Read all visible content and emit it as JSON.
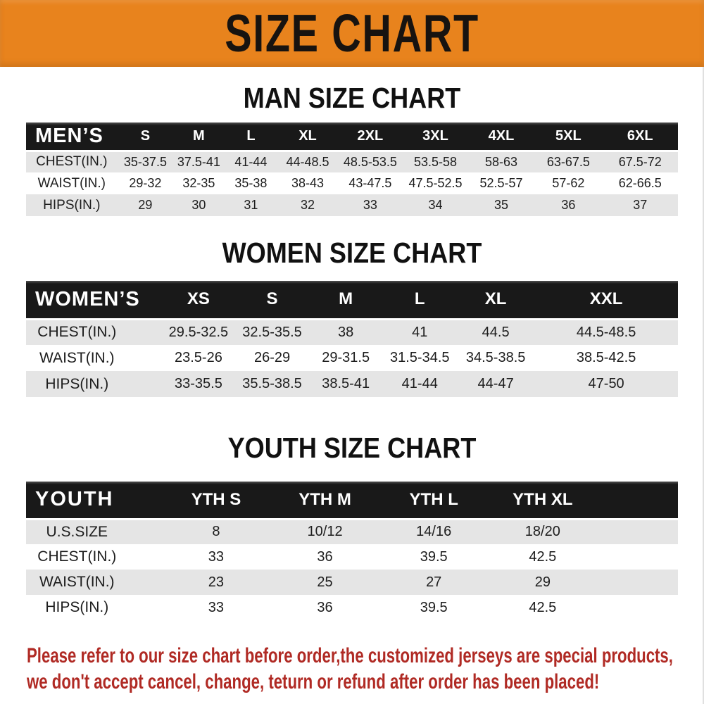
{
  "banner": {
    "title": "SIZE CHART"
  },
  "headings": {
    "men": "MAN SIZE CHART",
    "women": "WOMEN SIZE CHART",
    "youth": "YOUTH SIZE CHART"
  },
  "tables": {
    "men": {
      "header": [
        "MEN’S",
        "S",
        "M",
        "L",
        "XL",
        "2XL",
        "3XL",
        "4XL",
        "5XL",
        "6XL"
      ],
      "rows": [
        [
          "CHEST(IN.)",
          "35-37.5",
          "37.5-41",
          "41-44",
          "44-48.5",
          "48.5-53.5",
          "53.5-58",
          "58-63",
          "63-67.5",
          "67.5-72"
        ],
        [
          "WAIST(IN.)",
          "29-32",
          "32-35",
          "35-38",
          "38-43",
          "43-47.5",
          "47.5-52.5",
          "52.5-57",
          "57-62",
          "62-66.5"
        ],
        [
          "HIPS(IN.)",
          "29",
          "30",
          "31",
          "32",
          "33",
          "34",
          "35",
          "36",
          "37"
        ]
      ]
    },
    "women": {
      "header": [
        "WOMEN’S",
        "XS",
        "S",
        "M",
        "L",
        "XL",
        "XXL"
      ],
      "rows": [
        [
          "CHEST(IN.)",
          "29.5-32.5",
          "32.5-35.5",
          "38",
          "41",
          "44.5",
          "44.5-48.5"
        ],
        [
          "WAIST(IN.)",
          "23.5-26",
          "26-29",
          "29-31.5",
          "31.5-34.5",
          "34.5-38.5",
          "38.5-42.5"
        ],
        [
          "HIPS(IN.)",
          "33-35.5",
          "35.5-38.5",
          "38.5-41",
          "41-44",
          "44-47",
          "47-50"
        ]
      ]
    },
    "youth": {
      "header": [
        "YOUTH",
        "YTH S",
        "YTH M",
        "YTH L",
        "YTH XL",
        ""
      ],
      "rows": [
        [
          "U.S.SIZE",
          "8",
          "10/12",
          "14/16",
          "18/20",
          ""
        ],
        [
          "CHEST(IN.)",
          "33",
          "36",
          "39.5",
          "42.5",
          ""
        ],
        [
          "WAIST(IN.)",
          "23",
          "25",
          "27",
          "29",
          ""
        ],
        [
          "HIPS(IN.)",
          "33",
          "36",
          "39.5",
          "42.5",
          ""
        ]
      ]
    }
  },
  "disclaimer": {
    "line1": "Please refer to our size chart before order,the customized jerseys are special products,",
    "line2": "we don't accept cancel, change, teturn or refund after order has been placed!"
  },
  "colors": {
    "banner_orange": "#E8831D",
    "bar_black": "#191919",
    "stripe_gray": "#E5E5E5",
    "disclaimer_red": "#B02A24",
    "heading_black": "#111111"
  }
}
